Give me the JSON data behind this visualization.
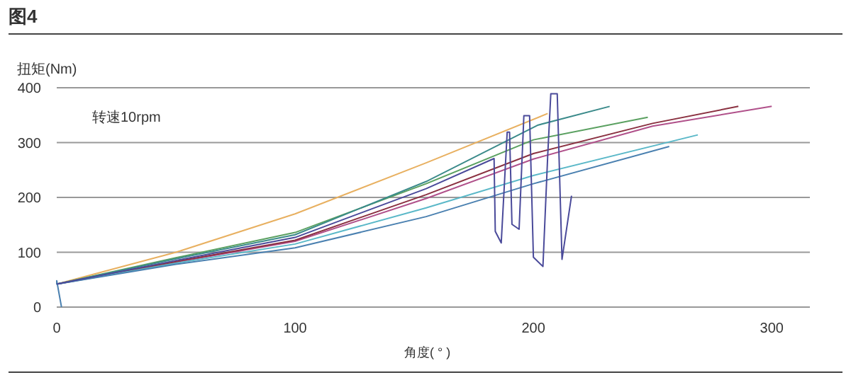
{
  "chart_data": {
    "type": "line",
    "title": "图4",
    "xlabel": "角度( ° )",
    "ylabel": "扭矩(Nm)",
    "annotations": [
      "转速10rpm"
    ],
    "xlim": [
      0,
      316
    ],
    "ylim": [
      0,
      400
    ],
    "xticks": [
      0,
      100,
      200,
      300
    ],
    "yticks": [
      0,
      100,
      200,
      300,
      400
    ],
    "grid": "y",
    "marker": "none",
    "line_style": "solid",
    "series": [
      {
        "color": "#e8b060",
        "x": [
          0,
          50,
          100,
          155,
          206
        ],
        "values": [
          42,
          100,
          170,
          263,
          353
        ]
      },
      {
        "color": "#5aa060",
        "x": [
          0,
          50,
          100,
          155,
          200,
          248
        ],
        "values": [
          42,
          90,
          136,
          225,
          305,
          346
        ]
      },
      {
        "color": "#3a8a8a",
        "x": [
          0,
          50,
          100,
          155,
          202,
          232
        ],
        "values": [
          42,
          88,
          132,
          229,
          332,
          366
        ]
      },
      {
        "color": "#b0508a",
        "x": [
          0,
          50,
          100,
          155,
          200,
          250,
          300
        ],
        "values": [
          42,
          82,
          120,
          198,
          270,
          330,
          366
        ]
      },
      {
        "color": "#8a3040",
        "x": [
          0,
          50,
          100,
          155,
          200,
          250,
          286
        ],
        "values": [
          42,
          83,
          122,
          205,
          280,
          335,
          366
        ]
      },
      {
        "color": "#5ab8c8",
        "x": [
          0,
          50,
          100,
          155,
          200,
          269
        ],
        "values": [
          42,
          80,
          115,
          181,
          240,
          314
        ]
      },
      {
        "color": "#4a80b0",
        "x": [
          2,
          0,
          0,
          50,
          100,
          155,
          200,
          257
        ],
        "values": [
          0,
          48,
          42,
          78,
          108,
          165,
          225,
          293
        ]
      },
      {
        "color": "#4a4a9a",
        "x": [
          0,
          50,
          100,
          155,
          183.5,
          184,
          186.5,
          189,
          190,
          191,
          194,
          196,
          198.4,
          200,
          204,
          206,
          207.3,
          210,
          212,
          216
        ],
        "values": [
          42,
          85,
          127,
          216,
          271,
          138,
          117,
          319,
          319,
          151,
          142,
          349,
          349,
          91,
          74,
          276,
          389,
          389,
          87,
          203
        ]
      }
    ]
  }
}
